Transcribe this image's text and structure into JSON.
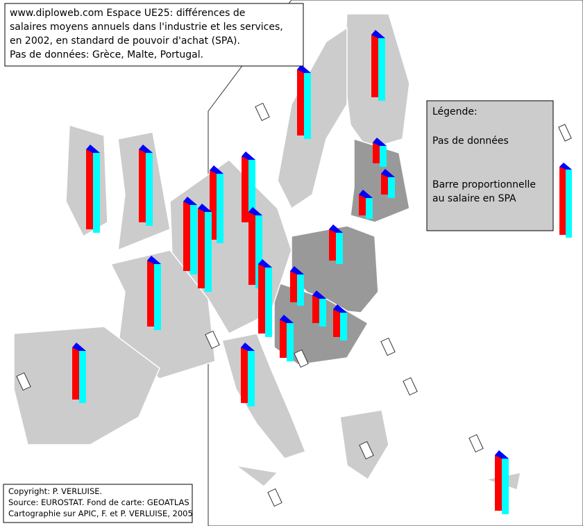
{
  "header": {
    "title_lines": [
      "www.diploweb.com Espace UE25: différences de",
      "salaires moyens annuels dans l'industrie et les services,",
      "en 2002, en standard de pouvoir d'achat (SPA).",
      "Pas de données: Grèce, Malte, Portugal."
    ]
  },
  "legend": {
    "title": "Légende:",
    "items": [
      "Pas de données",
      "Barre proportionnelle au salaire en SPA"
    ]
  },
  "bars": {
    "values": [
      90,
      95,
      30,
      30,
      30,
      115,
      105,
      95,
      100,
      100,
      115,
      105,
      95,
      45,
      45,
      100,
      40,
      40,
      55,
      80,
      75,
      80
    ]
  },
  "credits": [
    "Copyright: P. VERLUISE.",
    "Source: EUROSTAT. Fond de carte: GEOATLAS",
    "Cartographie sur APIC, F. et P. VERLUISE, 2005"
  ]
}
